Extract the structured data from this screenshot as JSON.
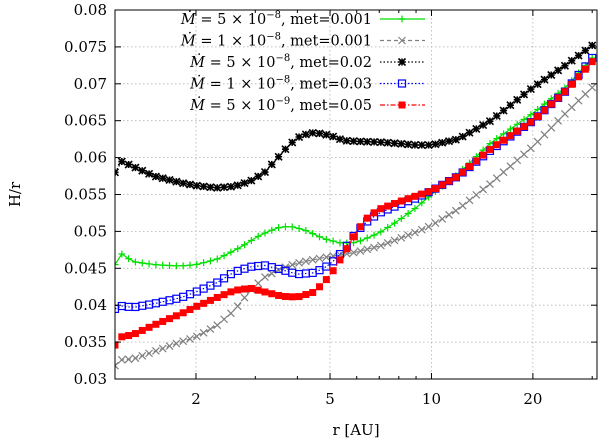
{
  "chart_data": {
    "type": "line",
    "xlabel": "r [AU]",
    "ylabel": "H/r",
    "xscale": "log",
    "xlim": [
      1.15,
      31
    ],
    "ylim": [
      0.03,
      0.08
    ],
    "xticks": [
      {
        "v": 2,
        "label": "2"
      },
      {
        "v": 5,
        "label": "5"
      },
      {
        "v": 10,
        "label": "10"
      },
      {
        "v": 20,
        "label": "20"
      }
    ],
    "yticks": [
      {
        "v": 0.03,
        "label": "0.03"
      },
      {
        "v": 0.035,
        "label": "0.035"
      },
      {
        "v": 0.04,
        "label": "0.04"
      },
      {
        "v": 0.045,
        "label": "0.045"
      },
      {
        "v": 0.05,
        "label": "0.05"
      },
      {
        "v": 0.055,
        "label": "0.055"
      },
      {
        "v": 0.06,
        "label": "0.06"
      },
      {
        "v": 0.065,
        "label": "0.065"
      },
      {
        "v": 0.07,
        "label": "0.07"
      },
      {
        "v": 0.075,
        "label": "0.075"
      },
      {
        "v": 0.08,
        "label": "0.08"
      }
    ],
    "grid": true,
    "legend_position": "top-left",
    "series": [
      {
        "name": "Ṁ = 5 × 10⁻⁸, met=0.001",
        "label_parts": {
          "mant": "5",
          "exp": "−8",
          "met": "met=0.001"
        },
        "color": "#00e000",
        "dash": "",
        "marker": "plus",
        "points": [
          [
            1.15,
            0.0455
          ],
          [
            1.2,
            0.047
          ],
          [
            1.3,
            0.0459
          ],
          [
            1.5,
            0.0455
          ],
          [
            1.8,
            0.0453
          ],
          [
            2.0,
            0.0455
          ],
          [
            2.3,
            0.0462
          ],
          [
            2.7,
            0.0478
          ],
          [
            3.1,
            0.0495
          ],
          [
            3.5,
            0.0505
          ],
          [
            3.8,
            0.0507
          ],
          [
            4.2,
            0.0502
          ],
          [
            4.8,
            0.049
          ],
          [
            5.4,
            0.0484
          ],
          [
            6.0,
            0.0485
          ],
          [
            7.0,
            0.0498
          ],
          [
            8.0,
            0.0515
          ],
          [
            9.0,
            0.0532
          ],
          [
            10.0,
            0.055
          ],
          [
            12.0,
            0.0578
          ],
          [
            15.0,
            0.062
          ],
          [
            20.0,
            0.066
          ],
          [
            25.0,
            0.0695
          ],
          [
            30.0,
            0.0735
          ]
        ]
      },
      {
        "name": "Ṁ = 1 × 10⁻⁸, met=0.001",
        "label_parts": {
          "mant": "1",
          "exp": "−8",
          "met": "met=0.001"
        },
        "color": "#808080",
        "dash": "4 3",
        "marker": "cross",
        "points": [
          [
            1.15,
            0.0318
          ],
          [
            1.2,
            0.0326
          ],
          [
            1.3,
            0.0327
          ],
          [
            1.5,
            0.0337
          ],
          [
            1.8,
            0.035
          ],
          [
            2.0,
            0.0357
          ],
          [
            2.3,
            0.0372
          ],
          [
            2.6,
            0.0393
          ],
          [
            2.9,
            0.042
          ],
          [
            3.2,
            0.0438
          ],
          [
            3.6,
            0.045
          ],
          [
            4.0,
            0.0457
          ],
          [
            4.5,
            0.0462
          ],
          [
            5.0,
            0.0466
          ],
          [
            6.0,
            0.0472
          ],
          [
            7.0,
            0.048
          ],
          [
            8.0,
            0.049
          ],
          [
            9.0,
            0.0499
          ],
          [
            10.0,
            0.0508
          ],
          [
            12.0,
            0.053
          ],
          [
            15.0,
            0.0565
          ],
          [
            20.0,
            0.0615
          ],
          [
            25.0,
            0.066
          ],
          [
            30.0,
            0.0695
          ]
        ]
      },
      {
        "name": "Ṁ = 5 × 10⁻⁸, met=0.02",
        "label_parts": {
          "mant": "5",
          "exp": "−8",
          "met": "met=0.02"
        },
        "color": "#000000",
        "dash": "1.5 2",
        "marker": "star",
        "points": [
          [
            1.15,
            0.058
          ],
          [
            1.2,
            0.0595
          ],
          [
            1.3,
            0.0588
          ],
          [
            1.5,
            0.0575
          ],
          [
            1.8,
            0.0566
          ],
          [
            2.0,
            0.0562
          ],
          [
            2.3,
            0.0559
          ],
          [
            2.6,
            0.0561
          ],
          [
            2.9,
            0.0568
          ],
          [
            3.2,
            0.058
          ],
          [
            3.5,
            0.06
          ],
          [
            3.8,
            0.0618
          ],
          [
            4.1,
            0.063
          ],
          [
            4.5,
            0.0634
          ],
          [
            5.0,
            0.063
          ],
          [
            5.5,
            0.0623
          ],
          [
            6.0,
            0.0622
          ],
          [
            7.0,
            0.0621
          ],
          [
            8.0,
            0.0619
          ],
          [
            9.0,
            0.0617
          ],
          [
            10.0,
            0.0617
          ],
          [
            12.0,
            0.0625
          ],
          [
            15.0,
            0.065
          ],
          [
            20.0,
            0.0695
          ],
          [
            25.0,
            0.0725
          ],
          [
            30.0,
            0.0752
          ]
        ]
      },
      {
        "name": "Ṁ = 1 × 10⁻⁸, met=0.03",
        "label_parts": {
          "mant": "1",
          "exp": "−8",
          "met": "met=0.03"
        },
        "color": "#0000ff",
        "dash": "1.5 2",
        "marker": "square-open",
        "points": [
          [
            1.15,
            0.0395
          ],
          [
            1.2,
            0.0399
          ],
          [
            1.3,
            0.0397
          ],
          [
            1.5,
            0.0402
          ],
          [
            1.8,
            0.041
          ],
          [
            2.0,
            0.0418
          ],
          [
            2.3,
            0.043
          ],
          [
            2.6,
            0.0445
          ],
          [
            2.9,
            0.0452
          ],
          [
            3.2,
            0.0454
          ],
          [
            3.6,
            0.0448
          ],
          [
            4.0,
            0.0442
          ],
          [
            4.5,
            0.0444
          ],
          [
            5.0,
            0.0455
          ],
          [
            5.5,
            0.0475
          ],
          [
            6.0,
            0.05
          ],
          [
            6.5,
            0.0515
          ],
          [
            7.0,
            0.0525
          ],
          [
            8.0,
            0.0536
          ],
          [
            9.0,
            0.0545
          ],
          [
            10.0,
            0.0555
          ],
          [
            12.0,
            0.0575
          ],
          [
            15.0,
            0.061
          ],
          [
            20.0,
            0.065
          ],
          [
            25.0,
            0.069
          ],
          [
            30.0,
            0.0735
          ]
        ]
      },
      {
        "name": "Ṁ = 5 × 10⁻⁹, met=0.05",
        "label_parts": {
          "mant": "5",
          "exp": "−9",
          "met": "met=0.05"
        },
        "color": "#ff0000",
        "dash": "5 2 1.5 2",
        "marker": "square-filled",
        "points": [
          [
            1.15,
            0.0346
          ],
          [
            1.2,
            0.0357
          ],
          [
            1.3,
            0.036
          ],
          [
            1.5,
            0.0373
          ],
          [
            1.8,
            0.0388
          ],
          [
            2.0,
            0.0398
          ],
          [
            2.3,
            0.041
          ],
          [
            2.6,
            0.042
          ],
          [
            2.9,
            0.0423
          ],
          [
            3.2,
            0.0418
          ],
          [
            3.6,
            0.0412
          ],
          [
            4.0,
            0.0411
          ],
          [
            4.5,
            0.0418
          ],
          [
            5.0,
            0.044
          ],
          [
            5.5,
            0.047
          ],
          [
            6.0,
            0.05
          ],
          [
            6.5,
            0.052
          ],
          [
            7.0,
            0.053
          ],
          [
            8.0,
            0.054
          ],
          [
            9.0,
            0.0548
          ],
          [
            10.0,
            0.0555
          ],
          [
            12.0,
            0.0575
          ],
          [
            15.0,
            0.0612
          ],
          [
            20.0,
            0.065
          ],
          [
            25.0,
            0.069
          ],
          [
            30.0,
            0.073
          ]
        ]
      }
    ]
  }
}
